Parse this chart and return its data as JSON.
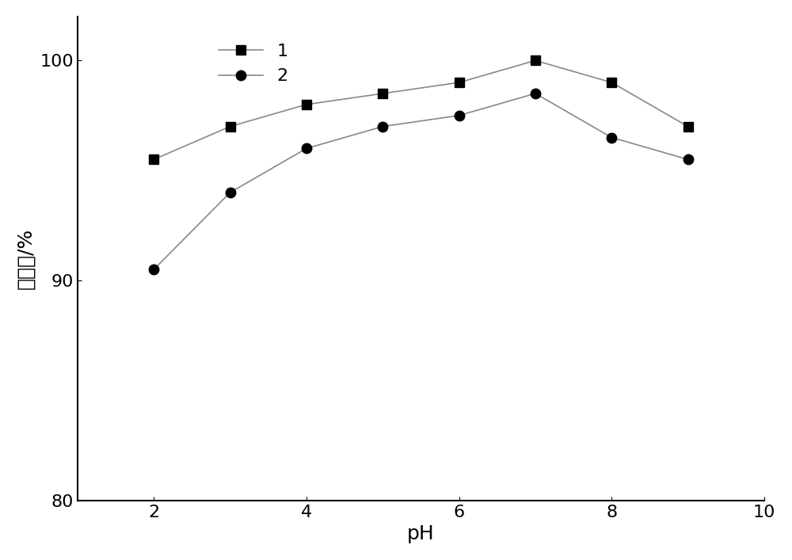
{
  "series1": {
    "label": "1",
    "x": [
      2,
      3,
      4,
      5,
      6,
      7,
      8,
      9
    ],
    "y": [
      95.5,
      97.0,
      98.0,
      98.5,
      99.0,
      100.0,
      99.0,
      97.0
    ],
    "marker": "s",
    "color": "#000000"
  },
  "series2": {
    "label": "2",
    "x": [
      2,
      3,
      4,
      5,
      6,
      7,
      8,
      9
    ],
    "y": [
      90.5,
      94.0,
      96.0,
      97.0,
      97.5,
      98.5,
      96.5,
      95.5
    ],
    "marker": "o",
    "color": "#000000"
  },
  "xlabel": "pH",
  "ylabel": "去除率/%",
  "xlim": [
    1,
    10
  ],
  "ylim": [
    80,
    102
  ],
  "xticks": [
    2,
    4,
    6,
    8,
    10
  ],
  "yticks": [
    80,
    90,
    100
  ],
  "line_color": "#888888",
  "marker_size": 9,
  "line_width": 1.2,
  "legend_fontsize": 16,
  "axis_fontsize": 18,
  "tick_fontsize": 16,
  "background_color": "#ffffff"
}
